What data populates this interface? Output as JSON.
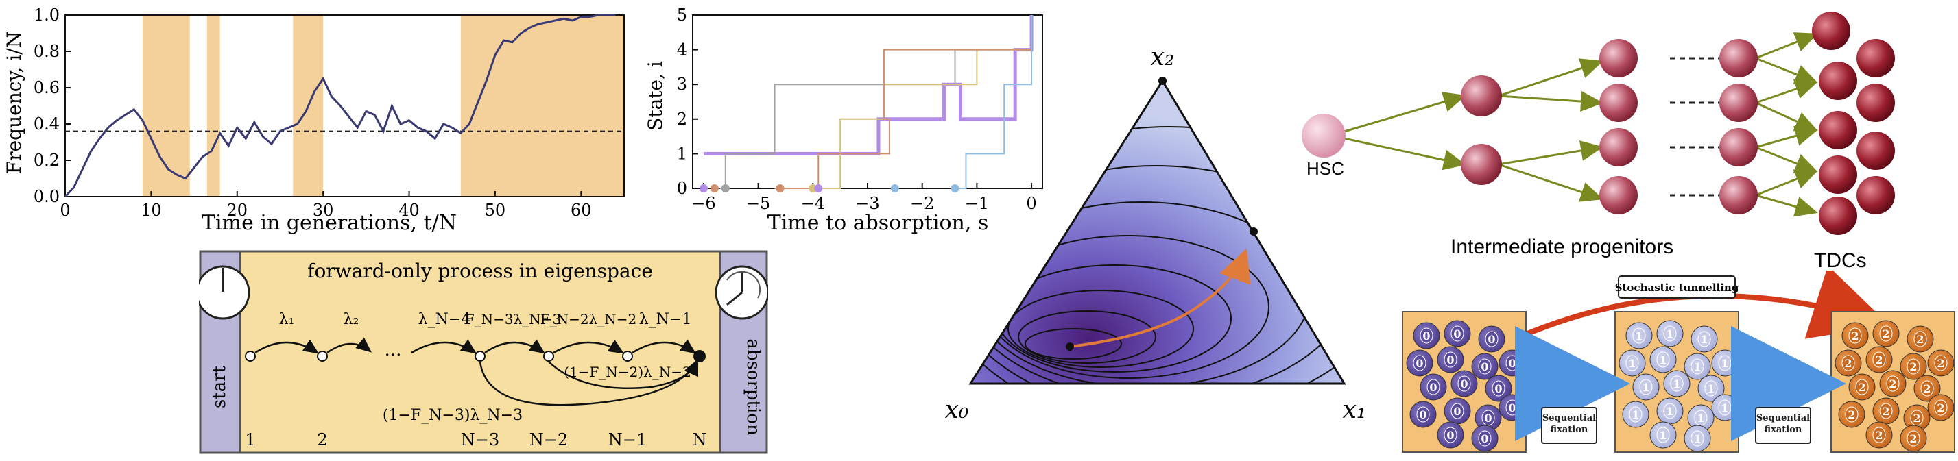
{
  "chart_data": [
    {
      "type": "line",
      "xlabel": "Time in generations, t/N",
      "ylabel": "Frequency, i/N",
      "xlim": [
        0,
        65
      ],
      "ylim": [
        0,
        1.0
      ],
      "xticks": [
        "0",
        "10",
        "20",
        "30",
        "40",
        "50",
        "60"
      ],
      "yticks": [
        "0.0",
        "0.2",
        "0.4",
        "0.6",
        "0.8",
        "1.0"
      ],
      "reference_line_y": 0.36,
      "shaded_intervals": [
        [
          9,
          14.5
        ],
        [
          16.5,
          18
        ],
        [
          26.5,
          30
        ],
        [
          46,
          65
        ]
      ],
      "series": [
        {
          "x": [
            0,
            1,
            2,
            3,
            4,
            5,
            6,
            7,
            8,
            9,
            10,
            11,
            12,
            13,
            14,
            15,
            16,
            17,
            18,
            19,
            20,
            21,
            22,
            23,
            24,
            25,
            26,
            27,
            28,
            29,
            30,
            31,
            32,
            33,
            34,
            35,
            36,
            37,
            38,
            39,
            40,
            41,
            42,
            43,
            44,
            45,
            46,
            47,
            48,
            49,
            50,
            51,
            52,
            53,
            54,
            55,
            56,
            57,
            58,
            59,
            60,
            61,
            62,
            63,
            64
          ],
          "values": [
            0.0,
            0.05,
            0.15,
            0.25,
            0.32,
            0.38,
            0.42,
            0.45,
            0.48,
            0.42,
            0.32,
            0.22,
            0.15,
            0.12,
            0.1,
            0.16,
            0.22,
            0.25,
            0.35,
            0.28,
            0.38,
            0.32,
            0.41,
            0.33,
            0.29,
            0.36,
            0.38,
            0.4,
            0.47,
            0.58,
            0.65,
            0.55,
            0.5,
            0.44,
            0.38,
            0.47,
            0.45,
            0.36,
            0.5,
            0.4,
            0.42,
            0.38,
            0.36,
            0.32,
            0.4,
            0.38,
            0.35,
            0.4,
            0.52,
            0.64,
            0.78,
            0.86,
            0.85,
            0.9,
            0.93,
            0.95,
            0.96,
            0.97,
            0.98,
            0.97,
            0.99,
            0.99,
            1.0,
            1.0,
            1.0
          ]
        }
      ]
    },
    {
      "type": "line",
      "xlabel": "Time to absorption, s",
      "ylabel": "State, i",
      "xlim": [
        -6.2,
        0.2
      ],
      "ylim": [
        0,
        5
      ],
      "xticks": [
        "−6",
        "−5",
        "−4",
        "−3",
        "−2",
        "−1",
        "0"
      ],
      "yticks": [
        "0",
        "1",
        "2",
        "3",
        "4",
        "5"
      ],
      "series": [
        {
          "color": "#b18be6",
          "x": [
            -6.0,
            -4.9,
            -2.8,
            -1.6,
            -1.3,
            -0.3,
            -0.1,
            0
          ],
          "values": [
            1,
            1,
            2,
            3,
            2,
            4,
            4,
            5
          ]
        },
        {
          "color": "#a0a0a0",
          "x": [
            -5.7,
            -5.6,
            -4.7,
            -3.9,
            -2.5,
            -1.4,
            -0.6,
            0
          ],
          "values": [
            0,
            1,
            3,
            3,
            3,
            4,
            4,
            5
          ]
        },
        {
          "color": "#d8c27a",
          "x": [
            -4.0,
            -3.5,
            -2.8,
            -2.7,
            -1.0,
            -0.4,
            0
          ],
          "values": [
            0,
            2,
            2,
            3,
            4,
            4,
            5
          ]
        },
        {
          "color": "#d08f6e",
          "x": [
            -4.7,
            -3.9,
            -2.6,
            -2.7,
            -0.8,
            -0.3,
            0
          ],
          "values": [
            0,
            1,
            2,
            4,
            4,
            4,
            5
          ]
        },
        {
          "color": "#8fbbe0",
          "x": [
            -1.4,
            -1.2,
            -0.5,
            0
          ],
          "values": [
            0,
            1,
            3,
            5
          ]
        }
      ],
      "absorption_markers_x": [
        -6.0,
        -5.8,
        -5.6,
        -4.6,
        -4.0,
        -3.9,
        -2.5,
        -1.4
      ]
    }
  ],
  "process_diagram": {
    "title": "forward-only process in eigenspace",
    "start_label": "start",
    "absorption_label": "absorption",
    "node_labels": [
      "1",
      "2",
      "N−3",
      "N−2",
      "N−1",
      "N"
    ],
    "top_rates": [
      "λ₁",
      "λ₂",
      "λ_N−4",
      "F_N−3λ_N−3",
      "F_N−2λ_N−2",
      "λ_N−1"
    ],
    "ellipsis": "···",
    "skip_rates": [
      "(1−F_N−3)λ_N−3",
      "(1−F_N−2)λ_N−2"
    ]
  },
  "simplex": {
    "vertex_labels": [
      "x₀",
      "x₁",
      "x₂"
    ],
    "fill_dark": "#4a1f7a",
    "fill_light": "#c8d0ee",
    "arrow_color": "#e07b39"
  },
  "hierarchy": {
    "hsc_label": "HSC",
    "progenitors_label": "Intermediate progenitors",
    "tdc_label": "TDCs"
  },
  "tunnelling": {
    "stochastic_label": "Stochastic tunnelling",
    "sequential_label_1": "Sequential fixation",
    "sequential_label_2": "Sequential fixation",
    "box_labels": [
      "0",
      "1",
      "2"
    ]
  }
}
